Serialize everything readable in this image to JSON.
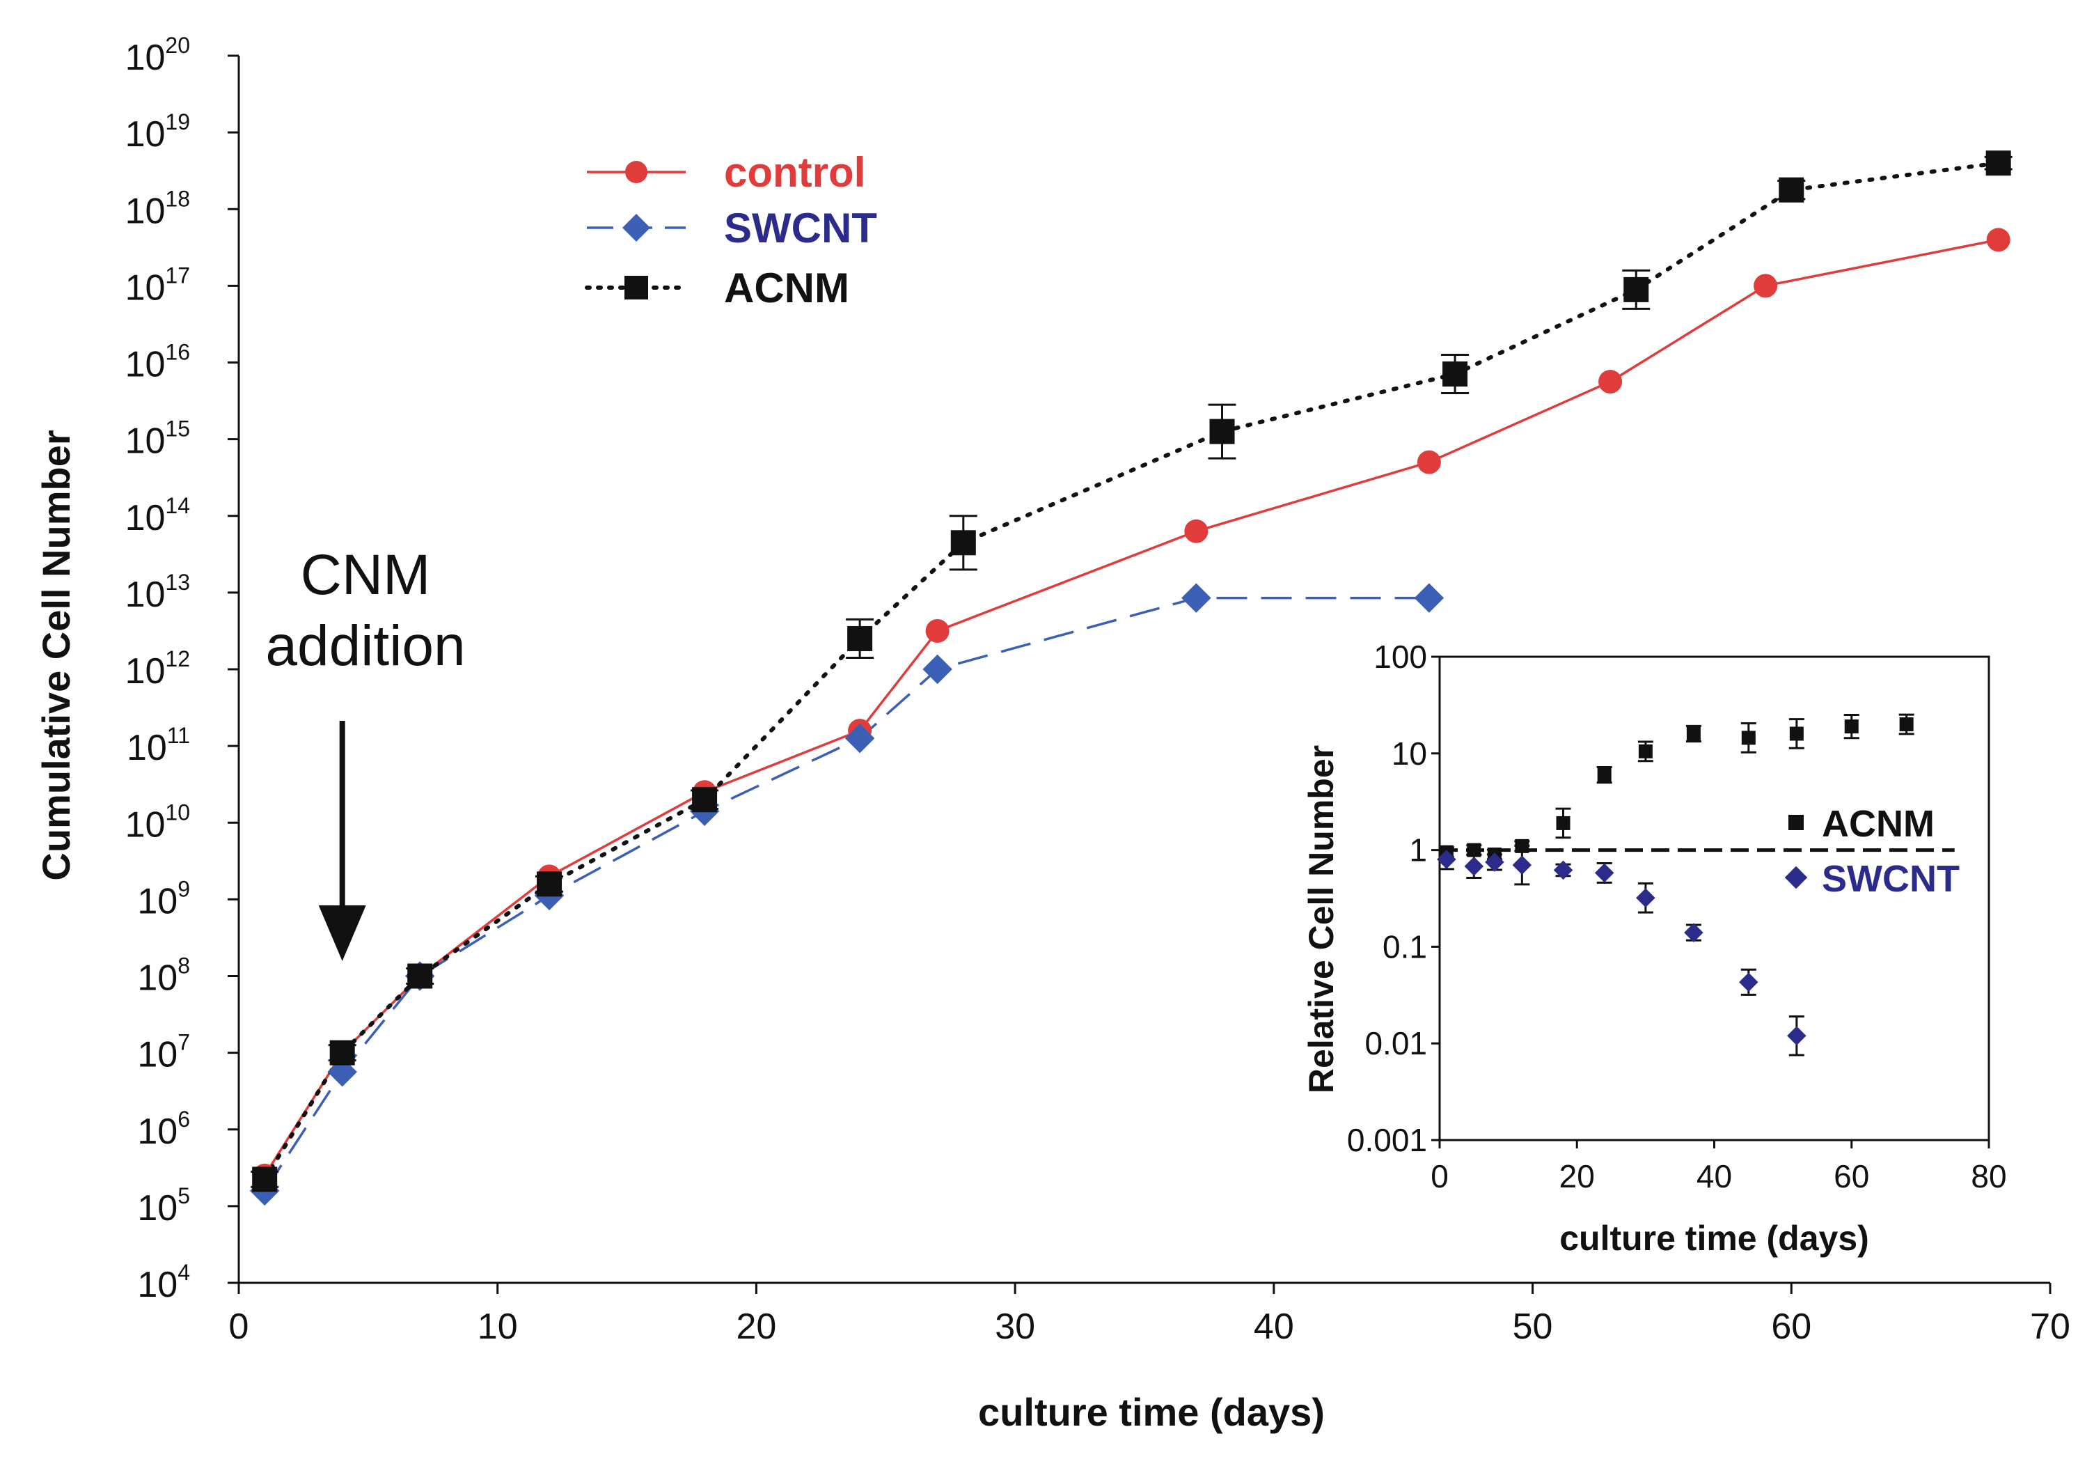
{
  "chart_data": [
    {
      "type": "line",
      "yscale": "log",
      "xlabel": "culture time (days)",
      "ylabel": "Cumulative Cell Number",
      "xlim": [
        0,
        70
      ],
      "ylim_exponents": [
        4,
        20
      ],
      "x_ticks": [
        "0",
        "10",
        "20",
        "30",
        "40",
        "50",
        "60",
        "70"
      ],
      "y_tick_base": "10",
      "y_tick_exponents": [
        "4",
        "5",
        "6",
        "7",
        "8",
        "9",
        "10",
        "11",
        "12",
        "13",
        "14",
        "15",
        "16",
        "17",
        "18",
        "19",
        "20"
      ],
      "legend": {
        "position": "top-left"
      },
      "annotation": {
        "line1": "CNM",
        "line2": "addition",
        "x_day": 4
      },
      "series": [
        {
          "name": "control",
          "color": "#e03c3c",
          "marker": "circle",
          "line": "solid",
          "x": [
            1,
            4,
            7,
            12,
            18,
            24,
            27,
            37,
            46,
            53,
            59,
            68
          ],
          "log10_y": [
            5.4,
            7.0,
            8.0,
            9.3,
            10.4,
            11.2,
            12.5,
            13.8,
            14.7,
            15.75,
            17.0,
            17.6
          ]
        },
        {
          "name": "SWCNT",
          "color": "#3a5fb5",
          "marker": "diamond",
          "line": "dashed",
          "x": [
            1,
            4,
            7,
            12,
            18,
            24,
            27,
            37,
            46
          ],
          "log10_y": [
            5.2,
            6.75,
            8.0,
            9.05,
            10.15,
            11.1,
            12.0,
            12.93,
            12.93
          ]
        },
        {
          "name": "ACNM",
          "color": "#111111",
          "marker": "square",
          "line": "dotted",
          "x": [
            1,
            4,
            7,
            12,
            18,
            24,
            28,
            38,
            47,
            54,
            60,
            68
          ],
          "log10_y": [
            5.35,
            7.0,
            8.0,
            9.2,
            10.3,
            12.4,
            13.65,
            15.1,
            15.85,
            16.95,
            18.25,
            18.6
          ],
          "err_log10": [
            0.1,
            0.1,
            0.1,
            0.1,
            0.12,
            0.25,
            0.35,
            0.35,
            0.25,
            0.25,
            0.12,
            0.08
          ]
        }
      ]
    },
    {
      "type": "scatter",
      "yscale": "log",
      "position": "inset-bottom-right",
      "xlabel": "culture time (days)",
      "ylabel": "Relative Cell Number",
      "xlim": [
        0,
        80
      ],
      "ylim": [
        0.001,
        100
      ],
      "x_ticks": [
        "0",
        "20",
        "40",
        "60",
        "80"
      ],
      "y_ticks": [
        "0.001",
        "0.01",
        "0.1",
        "1",
        "10",
        "100"
      ],
      "reference_line": 1,
      "legend": {
        "position": "right"
      },
      "series": [
        {
          "name": "ACNM",
          "color": "#111111",
          "marker": "square",
          "x": [
            1,
            5,
            8,
            12,
            18,
            24,
            30,
            37,
            45,
            52,
            60,
            68
          ],
          "y": [
            0.95,
            1.0,
            0.9,
            1.1,
            1.9,
            6.0,
            10.5,
            16.0,
            14.5,
            16.0,
            19.0,
            20.0
          ],
          "err_log10": [
            0.05,
            0.05,
            0.05,
            0.05,
            0.15,
            0.08,
            0.1,
            0.08,
            0.15,
            0.15,
            0.12,
            0.1
          ]
        },
        {
          "name": "SWCNT",
          "color": "#2b2b8c",
          "marker": "diamond",
          "x": [
            1,
            5,
            8,
            12,
            18,
            24,
            30,
            37,
            45,
            52
          ],
          "y": [
            0.8,
            0.68,
            0.75,
            0.7,
            0.62,
            0.58,
            0.32,
            0.14,
            0.043,
            0.012
          ],
          "err_log10": [
            0.1,
            0.12,
            0.08,
            0.2,
            0.06,
            0.1,
            0.15,
            0.08,
            0.13,
            0.2
          ]
        }
      ]
    }
  ]
}
